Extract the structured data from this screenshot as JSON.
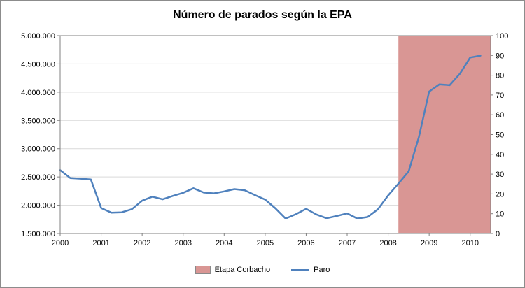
{
  "title": "Número de parados según la EPA",
  "colors": {
    "line": "#4F81BD",
    "area": "#D99694",
    "grid": "#D9D9D9",
    "axis": "#808080",
    "text": "#000000",
    "background": "#FFFFFF"
  },
  "legend": {
    "items": [
      {
        "label": "Etapa Corbacho",
        "type": "area"
      },
      {
        "label": "Paro",
        "type": "line"
      }
    ]
  },
  "chart_data": {
    "type": "line",
    "title": "Número de parados según la EPA",
    "grid": true,
    "legend_position": "bottom",
    "x": [
      2000.0,
      2000.25,
      2000.5,
      2000.75,
      2001.0,
      2001.25,
      2001.5,
      2001.75,
      2002.0,
      2002.25,
      2002.5,
      2002.75,
      2003.0,
      2003.25,
      2003.5,
      2003.75,
      2004.0,
      2004.25,
      2004.5,
      2004.75,
      2005.0,
      2005.25,
      2005.5,
      2005.75,
      2006.0,
      2006.25,
      2006.5,
      2006.75,
      2007.0,
      2007.25,
      2007.5,
      2007.75,
      2008.0,
      2008.25,
      2008.5,
      2008.75,
      2009.0,
      2009.25,
      2009.5,
      2009.75,
      2010.0,
      2010.25
    ],
    "series": [
      {
        "name": "Paro",
        "color": "#4F81BD",
        "values": [
          2620000,
          2480000,
          2470000,
          2455000,
          1950000,
          1869000,
          1875000,
          1930000,
          2080000,
          2152000,
          2105000,
          2165000,
          2220000,
          2300000,
          2225000,
          2210000,
          2245000,
          2285000,
          2265000,
          2180000,
          2100000,
          1945000,
          1765000,
          1841000,
          1936000,
          1837000,
          1770000,
          1811000,
          1856000,
          1765000,
          1792000,
          1928000,
          2174000,
          2382000,
          2599000,
          3208000,
          4011000,
          4138000,
          4123000,
          4327000,
          4613000,
          4646000
        ]
      }
    ],
    "shaded_region": {
      "name": "Etapa Corbacho",
      "color": "#D99694",
      "x_start": 2008.25,
      "x_end": 2010.5,
      "axis": "right",
      "value": 100
    },
    "left_axis": {
      "min": 1500000,
      "max": 5000000,
      "step": 500000,
      "labels": [
        "5.000.000",
        "4.500.000",
        "4.000.000",
        "3.500.000",
        "3.000.000",
        "2.500.000",
        "2.000.000",
        "1.500.000"
      ]
    },
    "right_axis": {
      "min": 0,
      "max": 100,
      "step": 10,
      "labels": [
        "100",
        "90",
        "80",
        "70",
        "60",
        "50",
        "40",
        "30",
        "20",
        "10",
        "0"
      ]
    },
    "x_axis": {
      "min": 2000,
      "max": 2010.5,
      "tick_positions": [
        2000,
        2001,
        2002,
        2003,
        2004,
        2005,
        2006,
        2007,
        2008,
        2009,
        2010
      ],
      "tick_labels": [
        "2000",
        "2001",
        "2002",
        "2003",
        "2004",
        "2005",
        "2006",
        "2007",
        "2008",
        "2009",
        "2010"
      ]
    }
  }
}
